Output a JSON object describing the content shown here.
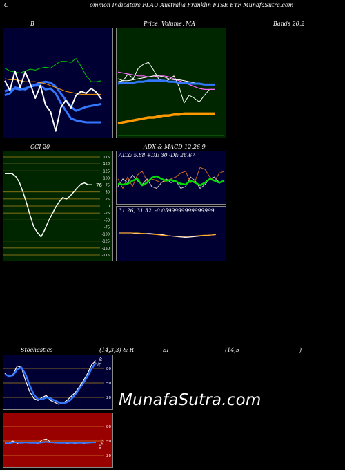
{
  "header": {
    "left": "C",
    "title": "ommon Indicators FLAU Australia Franklin FTSE ETF MunafaSutra.com"
  },
  "labels": {
    "b_title": "B",
    "price_title": "Price, Volume, MA",
    "bands_title": "Bands 20,2",
    "cci_title": "CCI 20",
    "adx_title": "ADX & MACD 12,26,9",
    "adx_info": "ADX: 5.88 +DI: 30 -DI: 26.67",
    "macd_info": "31.26, 31.32, -0.0599999999999999",
    "stoch_title": "Stochastics",
    "stoch_params": "(14,3,3) & R",
    "rsi_si": "SI",
    "rsi_params": "(14,5",
    "rsi_close": ")",
    "watermark": "MunafaSutra.com"
  },
  "colors": {
    "navy_bg": "#000033",
    "price_bg": "#002600",
    "cci_bg": "#002600",
    "rsi_bg": "#990000",
    "blue": "#3377ff",
    "orange": "#ff9900",
    "green": "#00cc00",
    "white": "#ffffff"
  },
  "chart_data": [
    {
      "type": "line",
      "name": "bollinger",
      "series": [
        {
          "values": [
            0.66,
            0.63,
            0.62,
            0.61,
            0.63,
            0.65,
            0.64,
            0.66,
            0.67,
            0.66,
            0.7,
            0.73,
            0.73,
            0.72,
            0.76,
            0.68,
            0.58,
            0.52,
            0.52,
            0.53
          ]
        },
        {
          "values": [
            0.42,
            0.44,
            0.45,
            0.44,
            0.45,
            0.47,
            0.49,
            0.51,
            0.52,
            0.51,
            0.47,
            0.4,
            0.33,
            0.26,
            0.22,
            0.24,
            0.26,
            0.27,
            0.28,
            0.29
          ]
        },
        {
          "values": [
            0.38,
            0.4,
            0.46,
            0.45,
            0.44,
            0.47,
            0.48,
            0.48,
            0.44,
            0.45,
            0.4,
            0.3,
            0.22,
            0.14,
            0.12,
            0.11,
            0.1,
            0.1,
            0.1,
            0.1
          ]
        },
        {
          "values": [
            0.55,
            0.54,
            0.54,
            0.53,
            0.52,
            0.52,
            0.52,
            0.51,
            0.5,
            0.48,
            0.46,
            0.44,
            0.42,
            0.41,
            0.4,
            0.39,
            0.39,
            0.39,
            0.39,
            0.39
          ]
        },
        {
          "values": [
            0.53,
            0.43,
            0.63,
            0.46,
            0.62,
            0.5,
            0.35,
            0.48,
            0.28,
            0.21,
            0.01,
            0.25,
            0.33,
            0.25,
            0.38,
            0.42,
            0.4,
            0.45,
            0.41,
            0.34
          ]
        }
      ]
    },
    {
      "type": "line",
      "name": "price-volume-ma",
      "series": [
        {
          "values": [
            0.55,
            0.53,
            0.6,
            0.55,
            0.66,
            0.7,
            0.72,
            0.64,
            0.55,
            0.52,
            0.54,
            0.58,
            0.47,
            0.3,
            0.38,
            0.35,
            0.31,
            0.38,
            0.44,
            0.44
          ]
        },
        {
          "values": [
            0.62,
            0.61,
            0.6,
            0.59,
            0.58,
            0.58,
            0.57,
            0.57,
            0.58,
            0.58,
            0.57,
            0.55,
            0.53,
            0.51,
            0.49,
            0.47,
            0.45,
            0.44,
            0.44,
            0.44
          ]
        },
        {
          "values": [
            0.52,
            0.53,
            0.53,
            0.54,
            0.55,
            0.56,
            0.57,
            0.58,
            0.58,
            0.57,
            0.55,
            0.54,
            0.54,
            0.53,
            0.52,
            0.51,
            0.5,
            0.49,
            0.49,
            0.49
          ]
        },
        {
          "values": [
            0.5,
            0.51,
            0.51,
            0.51,
            0.52,
            0.52,
            0.53,
            0.53,
            0.53,
            0.53,
            0.52,
            0.52,
            0.51,
            0.51,
            0.5,
            0.5,
            0.5,
            0.49,
            0.49,
            0.49
          ]
        },
        {
          "values": [
            0.09,
            0.1,
            0.11,
            0.12,
            0.13,
            0.14,
            0.15,
            0.15,
            0.16,
            0.17,
            0.17,
            0.18,
            0.18,
            0.19,
            0.19,
            0.19,
            0.19,
            0.19,
            0.19,
            0.19
          ]
        }
      ]
    },
    {
      "type": "line",
      "name": "cci",
      "yticks": [
        "175",
        "150",
        "125",
        "100",
        "75",
        "50",
        "25",
        "0",
        "-25",
        "-50",
        "-75",
        "-100",
        "-125",
        "-150",
        "-175"
      ],
      "ylim": [
        -175,
        175
      ],
      "last_value_label": "76",
      "x": [
        0,
        1,
        2,
        3,
        4,
        5,
        6,
        7,
        8,
        9,
        10,
        11,
        12,
        13,
        14,
        15,
        16,
        17,
        18,
        19,
        20,
        21,
        22,
        23,
        24
      ],
      "values": [
        115,
        115,
        115,
        105,
        85,
        50,
        10,
        -35,
        -75,
        -95,
        -110,
        -85,
        -55,
        -30,
        -5,
        15,
        30,
        25,
        35,
        50,
        65,
        78,
        82,
        76,
        76
      ]
    },
    {
      "type": "line",
      "name": "adx",
      "series": [
        {
          "values": [
            0.35,
            0.55,
            0.45,
            0.65,
            0.5,
            0.4,
            0.55,
            0.35,
            0.3,
            0.45,
            0.55,
            0.45,
            0.5,
            0.3,
            0.35,
            0.6,
            0.5,
            0.3,
            0.4,
            0.55,
            0.6,
            0.45,
            0.5
          ]
        },
        {
          "values": [
            0.55,
            0.3,
            0.6,
            0.35,
            0.65,
            0.75,
            0.5,
            0.55,
            0.5,
            0.45,
            0.5,
            0.55,
            0.6,
            0.7,
            0.75,
            0.45,
            0.5,
            0.85,
            0.8,
            0.6,
            0.5,
            0.7,
            0.75
          ]
        },
        {
          "values": [
            0.42,
            0.4,
            0.42,
            0.5,
            0.55,
            0.38,
            0.45,
            0.58,
            0.62,
            0.55,
            0.5,
            0.52,
            0.48,
            0.42,
            0.4,
            0.5,
            0.45,
            0.38,
            0.45,
            0.55,
            0.5,
            0.45,
            0.5
          ]
        }
      ]
    },
    {
      "type": "line",
      "name": "macd",
      "series": [
        {
          "values": [
            0.5,
            0.5,
            0.5,
            0.49,
            0.49,
            0.49,
            0.48,
            0.47,
            0.45,
            0.44,
            0.43,
            0.42,
            0.43,
            0.44,
            0.45,
            0.46,
            0.47
          ]
        },
        {
          "values": [
            0.5,
            0.5,
            0.5,
            0.5,
            0.49,
            0.48,
            0.47,
            0.46,
            0.45,
            0.44,
            0.44,
            0.44,
            0.44,
            0.45,
            0.46,
            0.46,
            0.47
          ]
        }
      ]
    },
    {
      "type": "line",
      "name": "stochastics",
      "yticks": [
        "80",
        "50",
        "20"
      ],
      "last_value_label": "94.87",
      "series": [
        {
          "values": [
            70,
            62,
            68,
            85,
            82,
            55,
            32,
            18,
            14,
            20,
            24,
            14,
            10,
            6,
            8,
            14,
            22,
            30,
            42,
            55,
            70,
            88,
            96
          ]
        },
        {
          "values": [
            68,
            64,
            66,
            78,
            82,
            68,
            45,
            26,
            16,
            16,
            20,
            18,
            14,
            10,
            8,
            10,
            16,
            26,
            38,
            50,
            64,
            80,
            92
          ]
        }
      ]
    },
    {
      "type": "line",
      "name": "rsi",
      "yticks": [
        "80",
        "50",
        "20"
      ],
      "last_value_label": "47.67",
      "series": [
        {
          "values": [
            44,
            46,
            50,
            45,
            48,
            47,
            46,
            47,
            45,
            52,
            54,
            48,
            46,
            46,
            47,
            45,
            46,
            45,
            47,
            45,
            46,
            47,
            48
          ]
        },
        {
          "values": [
            46,
            45,
            47,
            47,
            46,
            47,
            46,
            46,
            46,
            47,
            48,
            47,
            47,
            46,
            46,
            46,
            46,
            46,
            46,
            46,
            46,
            47,
            47
          ]
        }
      ]
    }
  ]
}
